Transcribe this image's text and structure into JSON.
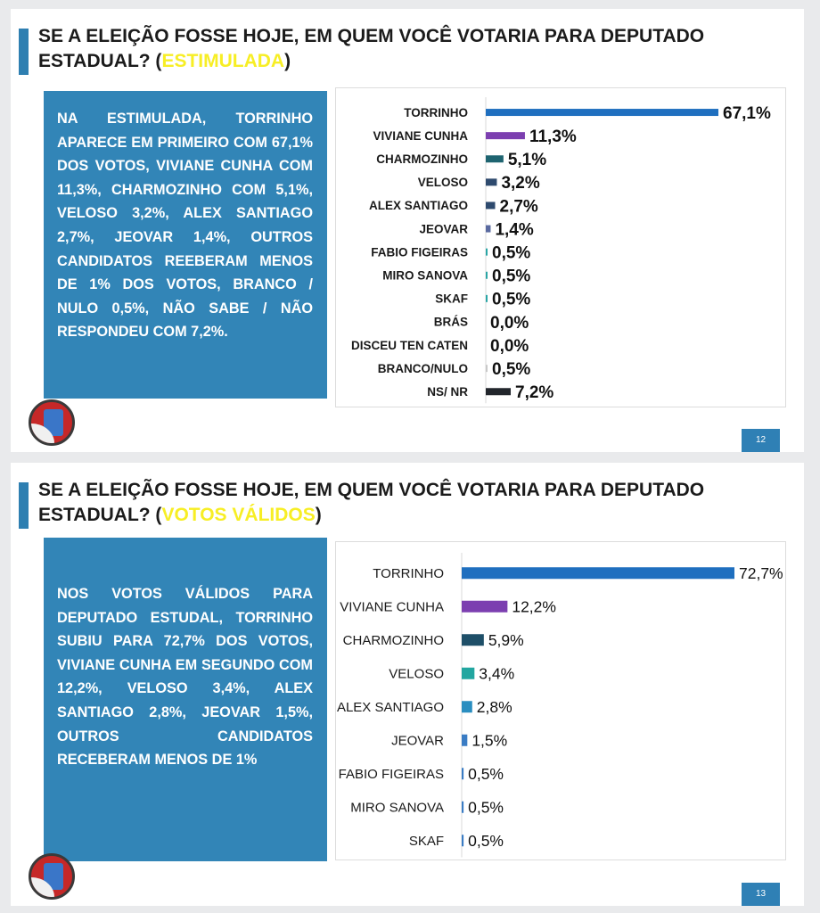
{
  "slides": [
    {
      "title_main": "SE A ELEIÇÃO FOSSE HOJE, EM QUEM VOCÊ VOTARIA PARA DEPUTADO ESTADUAL? (",
      "title_highlight": "ESTIMULADA",
      "title_end": ")",
      "summary": "NA ESTIMULADA, TORRINHO APARECE EM PRIMEIRO COM 67,1% DOS VOTOS, VIVIANE CUNHA COM 11,3%, CHARMOZINHO COM 5,1%, VELOSO 3,2%, ALEX SANTIAGO 2,7%, JEOVAR 1,4%, OUTROS CANDIDATOS REEBERAM MENOS DE 1% DOS VOTOS, BRANCO / NULO 0,5%, NÃO SABE / NÃO RESPONDEU COM 7,2%.",
      "page_number": "12"
    },
    {
      "title_main": "SE A ELEIÇÃO FOSSE HOJE, EM QUEM VOCÊ VOTARIA PARA DEPUTADO ESTADUAL? (",
      "title_highlight": "VOTOS VÁLIDOS",
      "title_end": ")",
      "summary": "NOS VOTOS VÁLIDOS PARA DEPUTADO ESTUDAL, TORRINHO SUBIU PARA 72,7% DOS VOTOS, VIVIANE CUNHA EM SEGUNDO COM 12,2%, VELOSO 3,4%, ALEX SANTIAGO 2,8%, JEOVAR 1,5%, OUTROS CANDIDATOS RECEBERAM MENOS DE 1%",
      "page_number": "13"
    }
  ],
  "chart_data": [
    {
      "type": "bar",
      "orientation": "horizontal",
      "categories": [
        "TORRINHO",
        "VIVIANE CUNHA",
        "CHARMOZINHO",
        "VELOSO",
        "ALEX SANTIAGO",
        "JEOVAR",
        "FABIO FIGEIRAS",
        "MIRO SANOVA",
        "SKAF",
        "BRÁS",
        "DISCEU TEN CATEN",
        "BRANCO/NULO",
        "NS/ NR"
      ],
      "values": [
        67.1,
        11.3,
        5.1,
        3.2,
        2.7,
        1.4,
        0.5,
        0.5,
        0.5,
        0.0,
        0.0,
        0.5,
        7.2
      ],
      "value_labels": [
        "67,1%",
        "11,3%",
        "5,1%",
        "3,2%",
        "2,7%",
        "1,4%",
        "0,5%",
        "0,5%",
        "0,5%",
        "0,0%",
        "0,0%",
        "0,5%",
        "7,2%"
      ],
      "colors": [
        "#1f6fbf",
        "#7c3fb0",
        "#1e6470",
        "#2e4a6e",
        "#2e4a6e",
        "#5a6aa0",
        "#2aa6a6",
        "#2aa6a6",
        "#2aa6a6",
        "#9aa0a6",
        "#9aa0a6",
        "#c8c8c8",
        "#22262c"
      ],
      "xlim": [
        0,
        67.1
      ]
    },
    {
      "type": "bar",
      "orientation": "horizontal",
      "categories": [
        "TORRINHO",
        "VIVIANE CUNHA",
        "CHARMOZINHO",
        "VELOSO",
        "ALEX SANTIAGO",
        "JEOVAR",
        "FABIO FIGEIRAS",
        "MIRO SANOVA",
        "SKAF"
      ],
      "values": [
        72.7,
        12.2,
        5.9,
        3.4,
        2.8,
        1.5,
        0.5,
        0.5,
        0.5
      ],
      "value_labels": [
        "72,7%",
        "12,2%",
        "5,9%",
        "3,4%",
        "2,8%",
        "1,5%",
        "0,5%",
        "0,5%",
        "0,5%"
      ],
      "colors": [
        "#1f6fbf",
        "#7c3fb0",
        "#1e4f68",
        "#22a6a0",
        "#2a8ec0",
        "#3a7cc4",
        "#3a7cc4",
        "#3a7cc4",
        "#3a7cc4"
      ],
      "xlim": [
        0,
        72.7
      ]
    }
  ]
}
